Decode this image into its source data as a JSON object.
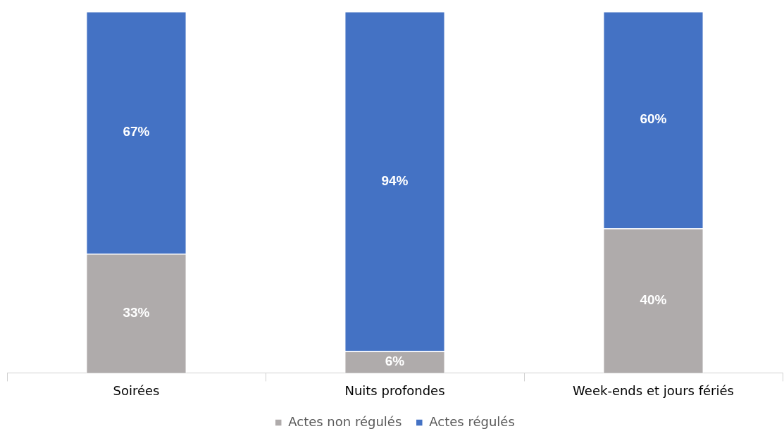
{
  "chart_data": {
    "type": "bar",
    "stacked": true,
    "categories": [
      "Soirées",
      "Nuits profondes",
      "Week-ends et jours fériés"
    ],
    "series": [
      {
        "name": "Actes non régulés",
        "color": "#afabab",
        "values": [
          33,
          6,
          40
        ],
        "value_labels": [
          "33%",
          "6%",
          "40%"
        ]
      },
      {
        "name": "Actes régulés",
        "color": "#4472c4",
        "values": [
          67,
          94,
          60
        ],
        "value_labels": [
          "67%",
          "94%",
          "60%"
        ]
      }
    ],
    "legend": "bottom",
    "grid": false
  }
}
